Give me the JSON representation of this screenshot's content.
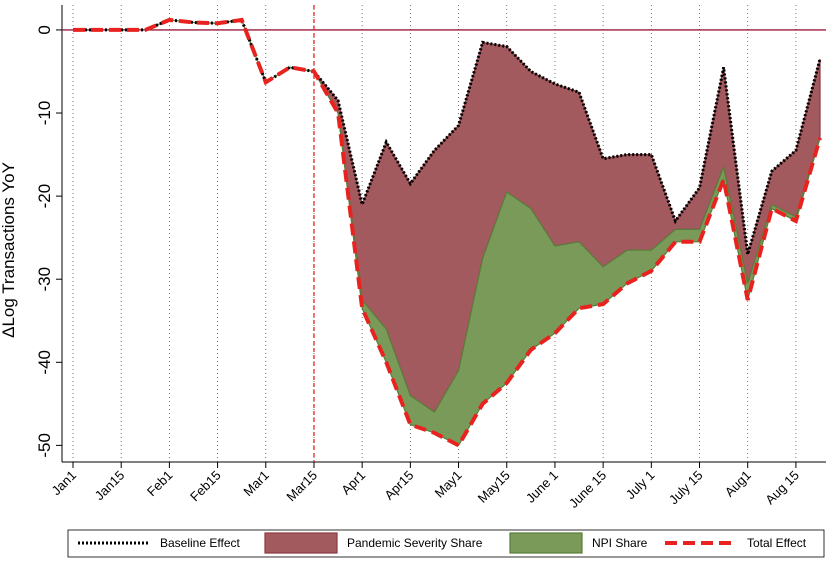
{
  "chart_data": {
    "type": "area",
    "y_label": "ΔLog Transactions YoY",
    "categories": [
      "Jan1",
      null,
      "Jan15",
      null,
      "Feb1",
      null,
      "Feb15",
      null,
      "Mar1",
      null,
      "Mar15",
      null,
      "Apr1",
      null,
      "Apr15",
      null,
      "May1",
      null,
      "May15",
      null,
      "June 1",
      null,
      "June 15",
      null,
      "July 1",
      null,
      "July 15",
      null,
      "Aug1",
      null,
      "Aug 15",
      null
    ],
    "series": [
      {
        "name": "Baseline Effect",
        "kind": "line",
        "dash": "dotted",
        "color": "#000000",
        "values": [
          0,
          0,
          0,
          0,
          1.2,
          0.9,
          0.8,
          1.2,
          -6.3,
          -4.5,
          -5,
          -8.5,
          -21,
          -13.5,
          -18.5,
          -14.5,
          -11.5,
          -1.5,
          -2,
          -5,
          -6.5,
          -7.5,
          -15.5,
          -15,
          -15,
          -23,
          -19,
          -4.5,
          -27,
          -17,
          -14.5,
          -3.5
        ]
      },
      {
        "name": "Pandemic Severity Share",
        "kind": "area",
        "color": "#a35a5f",
        "edge": "#8b3a40",
        "values": [
          0,
          0,
          0,
          0,
          0,
          0,
          0,
          0,
          0,
          0,
          0,
          -1.5,
          -11.5,
          -22.5,
          -25.5,
          -31.5,
          -29.5,
          -26,
          -17.5,
          -16.5,
          -19.5,
          -18,
          -13,
          -11.5,
          -11.5,
          -1,
          -5,
          -12,
          -3.5,
          -4,
          -8,
          -9.5
        ]
      },
      {
        "name": "NPI Share",
        "kind": "area",
        "color": "#7a9a5a",
        "edge": "#5a7d3a",
        "values": [
          0,
          0,
          0,
          0,
          0,
          0,
          0,
          0,
          0,
          0,
          0,
          0,
          -1,
          -4,
          -3.5,
          -2.5,
          -9,
          -17.5,
          -23,
          -17,
          -10.5,
          -8,
          -4.5,
          -4,
          -2.5,
          -1.5,
          -1.5,
          -1.5,
          -2,
          -0.5,
          -0.5,
          0
        ]
      },
      {
        "name": "Total Effect",
        "kind": "line",
        "dash": "dashed",
        "color": "#e8231f",
        "values": [
          0,
          0,
          0,
          0,
          1.2,
          0.9,
          0.8,
          1.2,
          -6.3,
          -4.5,
          -5,
          -10,
          -33.5,
          -40,
          -47.5,
          -48.5,
          -50,
          -45,
          -42.5,
          -38.5,
          -36.5,
          -33.5,
          -33,
          -30.5,
          -29,
          -25.5,
          -25.5,
          -18,
          -32.5,
          -21.5,
          -23,
          -13
        ]
      }
    ],
    "ylim": [
      -52,
      3
    ],
    "yticks": [
      0,
      -10,
      -20,
      -30,
      -40,
      -50
    ],
    "zero_line_color": "#9b1c3c",
    "event_category": "Mar15",
    "event_color": "#e8231f",
    "grid": true,
    "legend": "bottom"
  }
}
